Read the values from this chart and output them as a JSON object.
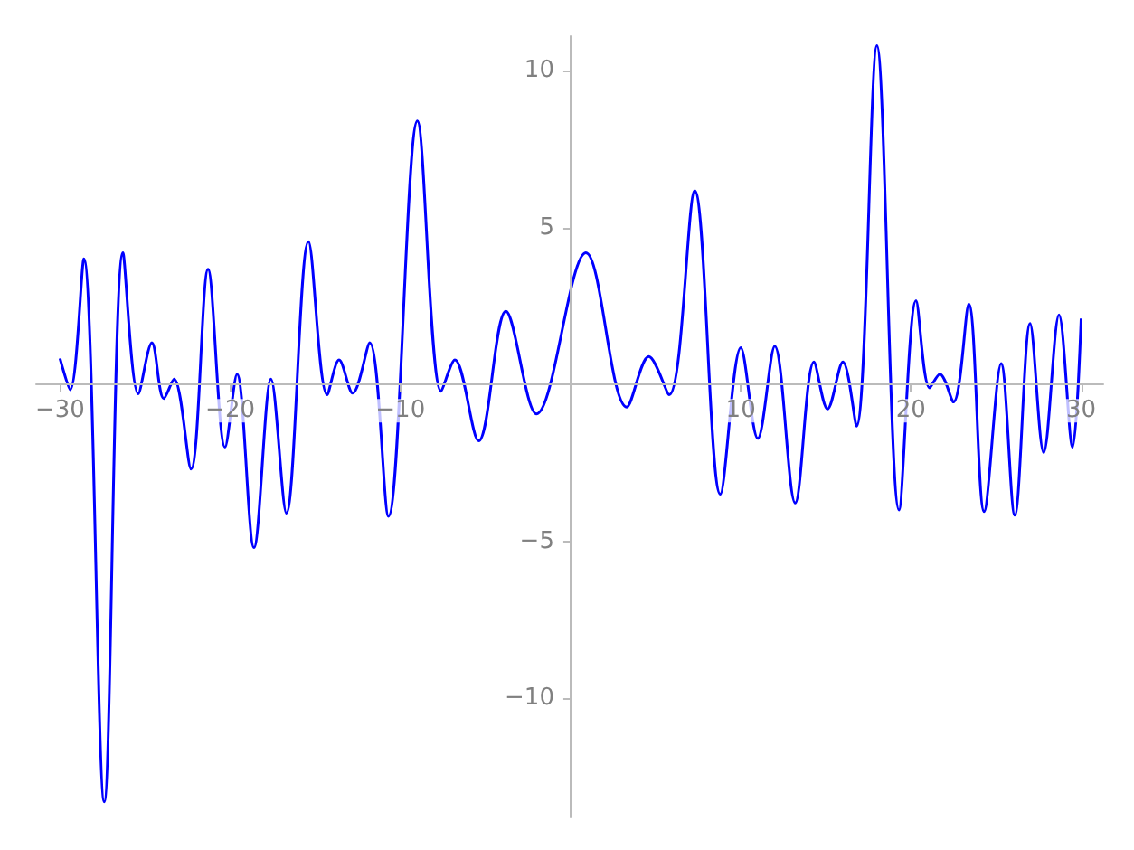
{
  "chart_data": {
    "type": "line",
    "x": [
      -30,
      -29.4,
      -28.6,
      -27.4,
      -26.3,
      -25.4,
      -24.6,
      -23.9,
      -23.3,
      -22.3,
      -21.3,
      -20.3,
      -19.6,
      -18.6,
      -17.6,
      -16.7,
      -15.4,
      -14.3,
      -13.6,
      -12.8,
      -11.8,
      -10.7,
      -9.0,
      -7.6,
      -6.8,
      -5.4,
      -3.8,
      -2.0,
      0.9,
      3.3,
      4.6,
      5.8,
      7.3,
      8.8,
      10.0,
      11.0,
      12.0,
      13.2,
      14.3,
      15.1,
      16.0,
      16.8,
      18.0,
      19.3,
      20.3,
      21.1,
      21.7,
      22.5,
      23.4,
      24.3,
      25.3,
      26.1,
      27.0,
      27.8,
      28.7,
      29.5,
      30
    ],
    "series": [
      {
        "color": "#0000ff",
        "values": [
          0.83,
          -0.17,
          4.0,
          -13.3,
          4.2,
          -0.3,
          1.33,
          -0.45,
          0.17,
          -2.7,
          3.67,
          -2.0,
          0.33,
          -5.2,
          0.17,
          -4.1,
          4.55,
          -0.33,
          0.78,
          -0.28,
          1.33,
          -4.2,
          8.4,
          -0.22,
          0.78,
          -1.8,
          2.33,
          -0.94,
          4.2,
          -0.72,
          0.89,
          -0.33,
          6.17,
          -3.5,
          1.17,
          -1.72,
          1.22,
          -3.78,
          0.72,
          -0.78,
          0.72,
          -1.33,
          10.8,
          -4.0,
          2.67,
          -0.11,
          0.33,
          -0.56,
          2.56,
          -4.05,
          0.67,
          -4.17,
          1.94,
          -2.17,
          2.22,
          -2.0,
          2.1
        ]
      }
    ],
    "xlim": [
      -31.4,
      31.3
    ],
    "ylim": [
      -13.8,
      11.1
    ],
    "xticks": [
      {
        "value": -30,
        "label": "−30"
      },
      {
        "value": -20,
        "label": "−20"
      },
      {
        "value": -10,
        "label": "−10"
      },
      10,
      20,
      30
    ],
    "yticks": [
      {
        "value": -10,
        "label": "−10"
      },
      {
        "value": -5,
        "label": "−5"
      },
      5,
      10
    ],
    "grid": false,
    "marker": "none",
    "line_style": "solid"
  }
}
